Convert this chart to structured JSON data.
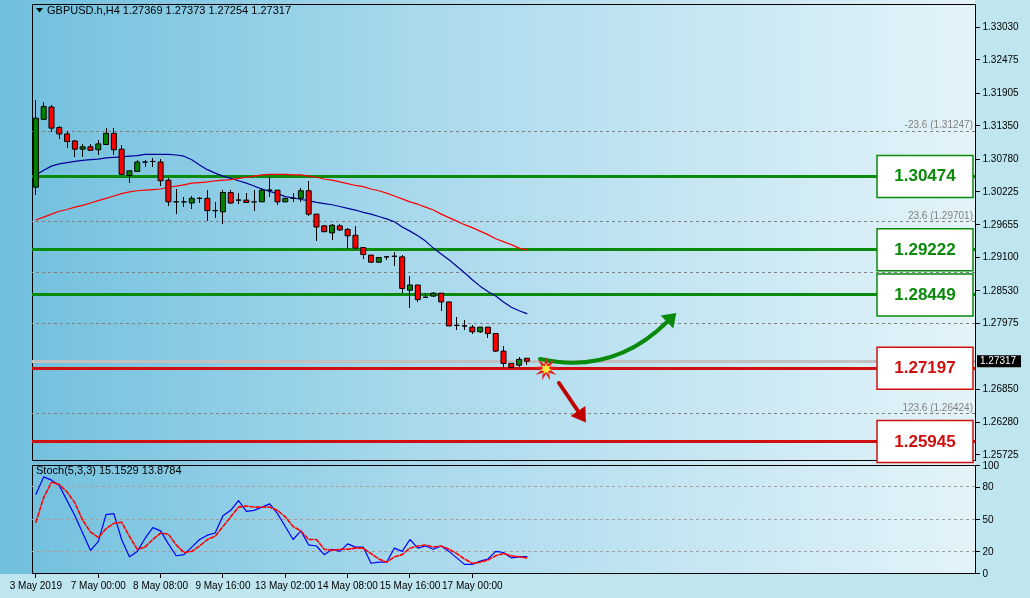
{
  "chart_data": [
    {
      "type": "candlestick",
      "title": "GBPUSD.h,H4 1.27369 1.27373 1.27254 1.27317",
      "categories": [
        null,
        null,
        null,
        null,
        null,
        null,
        null,
        null,
        null,
        null,
        null,
        null,
        null,
        null,
        null,
        null,
        null,
        null,
        null,
        null,
        null,
        null,
        null,
        null,
        null,
        null,
        null,
        null,
        null,
        null,
        null,
        null,
        null,
        null,
        null,
        null,
        null,
        null,
        null,
        null,
        null,
        null,
        null,
        null,
        null,
        null,
        null,
        null,
        null,
        null,
        null,
        null,
        null,
        null,
        null,
        null,
        null,
        null,
        null,
        null,
        null,
        null,
        null,
        null,
        null,
        null,
        null,
        null,
        null,
        null,
        null,
        null,
        null,
        null,
        null,
        null,
        null,
        null,
        null,
        null,
        null,
        null,
        null,
        null,
        null,
        null,
        null,
        null,
        null,
        null,
        null,
        null,
        null,
        null,
        null,
        null,
        null,
        null,
        null,
        null,
        null,
        null,
        null,
        null,
        null,
        null,
        null,
        null,
        null,
        null,
        null,
        null,
        null,
        null,
        null,
        null,
        null,
        null,
        null,
        null,
        null
      ],
      "ohlc": [
        [
          1.3029,
          1.3178,
          1.3016,
          1.3147
        ],
        [
          1.3145,
          1.3175,
          1.3145,
          1.3167
        ],
        [
          1.3166,
          1.317,
          1.3124,
          1.313
        ],
        [
          1.3131,
          1.3134,
          1.3111,
          1.312
        ],
        [
          1.312,
          1.3125,
          1.3096,
          1.3107
        ],
        [
          1.3108,
          1.311,
          1.308,
          1.3094
        ],
        [
          1.3094,
          1.3102,
          1.308,
          1.3098
        ],
        [
          1.3098,
          1.3102,
          1.3092,
          1.3092
        ],
        [
          1.3093,
          1.311,
          1.3084,
          1.3103
        ],
        [
          1.3102,
          1.3131,
          1.3102,
          1.3121
        ],
        [
          1.3121,
          1.3131,
          1.3084,
          1.3093
        ],
        [
          1.3094,
          1.3101,
          1.3051,
          1.3051
        ],
        [
          1.3049,
          1.3057,
          1.3037,
          1.3057
        ],
        [
          1.3056,
          1.3076,
          1.3056,
          1.3072
        ],
        [
          1.3072,
          1.3076,
          1.3064,
          1.3072
        ],
        [
          1.3073,
          1.3079,
          1.3064,
          1.3073
        ],
        [
          1.3072,
          1.3077,
          1.3031,
          1.304
        ],
        [
          1.3041,
          1.3044,
          1.2997,
          1.3004
        ],
        [
          1.3004,
          1.3026,
          1.2984,
          1.3004
        ],
        [
          1.3004,
          1.3013,
          1.2996,
          1.3004
        ],
        [
          1.3002,
          1.3014,
          1.2991,
          1.301
        ],
        [
          1.301,
          1.3013,
          1.3002,
          1.301
        ],
        [
          1.301,
          1.3024,
          1.2972,
          1.2989
        ],
        [
          1.2989,
          1.3004,
          1.2976,
          1.2989
        ],
        [
          1.2987,
          1.3024,
          1.2966,
          1.302
        ],
        [
          1.302,
          1.3024,
          1.3,
          1.3002
        ],
        [
          1.3007,
          1.3019,
          1.3,
          1.3007
        ],
        [
          1.3007,
          1.3019,
          1.3003,
          1.3003
        ],
        [
          1.3004,
          1.3024,
          1.2989,
          1.3004
        ],
        [
          1.3004,
          1.3027,
          1.3004,
          1.3024
        ],
        [
          1.3024,
          1.3047,
          1.3013,
          1.3024
        ],
        [
          1.3024,
          1.3025,
          1.2999,
          1.3004
        ],
        [
          1.3004,
          1.301,
          1.3003,
          1.301
        ],
        [
          1.301,
          1.3019,
          1.3004,
          1.301
        ],
        [
          1.301,
          1.3027,
          1.3003,
          1.3023
        ],
        [
          1.3023,
          1.304,
          1.298,
          1.2983
        ],
        [
          1.2983,
          1.2984,
          1.2937,
          1.2961
        ],
        [
          1.2963,
          1.2964,
          1.2953,
          1.2953
        ],
        [
          1.2951,
          1.2967,
          1.2939,
          1.2964
        ],
        [
          1.2963,
          1.2966,
          1.2955,
          1.2956
        ],
        [
          1.2957,
          1.296,
          1.2923,
          1.2946
        ],
        [
          1.2947,
          1.2963,
          1.2925,
          1.2925
        ],
        [
          1.2926,
          1.2926,
          1.2906,
          1.2914
        ],
        [
          1.2913,
          1.2914,
          1.2899,
          1.2901
        ],
        [
          1.2901,
          1.291,
          1.2899,
          1.2909
        ],
        [
          1.291,
          1.2912,
          1.2905,
          1.291
        ],
        [
          1.2911,
          1.2919,
          1.2894,
          1.2911
        ],
        [
          1.291,
          1.2913,
          1.2849,
          1.2856
        ],
        [
          1.2853,
          1.2877,
          1.2823,
          1.2862
        ],
        [
          1.2862,
          1.2862,
          1.2833,
          1.2837
        ],
        [
          1.2841,
          1.2848,
          1.2839,
          1.2841
        ],
        [
          1.2843,
          1.285,
          1.2842,
          1.2848
        ],
        [
          1.2848,
          1.2849,
          1.2818,
          1.2833
        ],
        [
          1.2833,
          1.2833,
          1.2792,
          1.2792
        ],
        [
          1.2793,
          1.2808,
          1.2785,
          1.2793
        ],
        [
          1.2792,
          1.2802,
          1.2785,
          1.2792
        ],
        [
          1.279,
          1.2793,
          1.2778,
          1.2782
        ],
        [
          1.2782,
          1.2791,
          1.278,
          1.279
        ],
        [
          1.279,
          1.2791,
          1.2771,
          1.2779
        ],
        [
          1.2779,
          1.2779,
          1.2748,
          1.2749
        ],
        [
          1.2749,
          1.2758,
          1.272,
          1.2728
        ],
        [
          1.2728,
          1.2729,
          1.272,
          1.2721
        ],
        [
          1.2725,
          1.2739,
          1.2722,
          1.2735
        ],
        [
          1.27369,
          1.27373,
          1.27254,
          1.27317
        ],
        null,
        null,
        null,
        null,
        null,
        null,
        null,
        null,
        null,
        null,
        null,
        null,
        null,
        null,
        null,
        null,
        null,
        null,
        null,
        null,
        null,
        null,
        null,
        null,
        null,
        null,
        null,
        null,
        null,
        null,
        null,
        null,
        null,
        null,
        null,
        null,
        null,
        null,
        null,
        null,
        null,
        null,
        null,
        null,
        null,
        null,
        null,
        null,
        null,
        null,
        null,
        null,
        null,
        null,
        null,
        null,
        null
      ],
      "colors": [
        "#008000",
        "#008000",
        "#ff0000",
        "#ff0000",
        "#ff0000",
        "#ff0000",
        "#008000",
        "#ff0000",
        "#008000",
        "#008000",
        "#ff0000",
        "#ff0000",
        "#008000",
        "#008000",
        "#000000",
        "#000000",
        "#ff0000",
        "#ff0000",
        "#000000",
        "#000000",
        "#008000",
        "#000000",
        "#ff0000",
        "#000000",
        "#008000",
        "#ff0000",
        "#000000",
        "#ff0000",
        "#000000",
        "#008000",
        "#000000",
        "#ff0000",
        "#008000",
        "#000000",
        "#008000",
        "#ff0000",
        "#ff0000",
        "#ff0000",
        "#008000",
        "#ff0000",
        "#ff0000",
        "#ff0000",
        "#ff0000",
        "#ff0000",
        "#008000",
        "#000000",
        "#000000",
        "#ff0000",
        "#008000",
        "#ff0000",
        "#000000",
        "#008000",
        "#ff0000",
        "#ff0000",
        "#000000",
        "#000000",
        "#ff0000",
        "#008000",
        "#ff0000",
        "#ff0000",
        "#ff0000",
        "#ff0000",
        "#008000",
        "#ff0000",
        null,
        null,
        null,
        null,
        null,
        null,
        null,
        null,
        null,
        null,
        null,
        null,
        null,
        null,
        null,
        null,
        null,
        null,
        null,
        null,
        null,
        null,
        null,
        null,
        null,
        null,
        null,
        null,
        null,
        null,
        null,
        null,
        null,
        null,
        null,
        null,
        null,
        null,
        null,
        null,
        null,
        null,
        null,
        null,
        null,
        null,
        null,
        null,
        null,
        null,
        null,
        null,
        null,
        null,
        null,
        null,
        null
      ],
      "series": [
        {
          "type": "line",
          "color": "#000099",
          "values": [
            1.305,
            1.3058,
            1.3065,
            1.3069,
            1.3071,
            1.3073,
            1.3075,
            1.3076,
            1.3077,
            1.3079,
            1.308,
            1.3081,
            1.3082,
            1.3083,
            1.3085,
            1.3085,
            1.3085,
            1.3085,
            1.3084,
            1.3082,
            1.3076,
            1.3067,
            1.3059,
            1.3053,
            1.3048,
            1.3044,
            1.304,
            1.3036,
            1.3031,
            1.3026,
            1.3022,
            1.3018,
            1.3013,
            1.3011,
            1.3008,
            1.3006,
            1.3003,
            1.3001,
            1.2999,
            1.2996,
            1.2993,
            1.299,
            1.2986,
            1.2983,
            1.2979,
            1.2975,
            1.297,
            1.2961,
            1.2954,
            1.2946,
            1.2937,
            1.2925,
            1.2915,
            1.2905,
            1.2894,
            1.2883,
            1.2871,
            1.286,
            1.2851,
            1.2843,
            1.2833,
            1.2824,
            1.2818,
            1.2813,
            null,
            null,
            null,
            null,
            null,
            null,
            null,
            null,
            null,
            null,
            null,
            null,
            null,
            null,
            null,
            null,
            null,
            null,
            null,
            null,
            null,
            null,
            null,
            null,
            null,
            null,
            null,
            null,
            null,
            null,
            null,
            null,
            null,
            null,
            null,
            null,
            null,
            null,
            null,
            null,
            null,
            null,
            null,
            null,
            null,
            null,
            null,
            null,
            null,
            null,
            null,
            null,
            null,
            null,
            null,
            null,
            null
          ]
        },
        {
          "type": "line",
          "color": "#ff0000",
          "values": [
            1.2973,
            1.2978,
            1.2983,
            1.2988,
            1.2991,
            1.2995,
            1.2998,
            1.3002,
            1.3006,
            1.301,
            1.3014,
            1.3018,
            1.3021,
            1.3023,
            1.3024,
            1.3025,
            1.3026,
            1.3029,
            1.3031,
            1.3033,
            1.3036,
            1.3037,
            1.3038,
            1.304,
            1.3041,
            1.3042,
            1.3044,
            1.3046,
            1.3048,
            1.305,
            1.3051,
            1.3051,
            1.3051,
            1.305,
            1.305,
            1.3048,
            1.3046,
            1.3043,
            1.3041,
            1.3038,
            1.3035,
            1.3032,
            1.303,
            1.3026,
            1.3023,
            1.3019,
            1.3014,
            1.3009,
            1.3004,
            1.3,
            1.2995,
            1.299,
            1.2983,
            1.2977,
            1.2971,
            1.2965,
            1.296,
            1.2954,
            1.2948,
            1.2941,
            1.2936,
            1.2931,
            1.2925,
            1.2922,
            null,
            null,
            null,
            null,
            null,
            null,
            null,
            null,
            null,
            null,
            null,
            null,
            null,
            null,
            null,
            null,
            null,
            null,
            null,
            null,
            null,
            null,
            null,
            null,
            null,
            null,
            null,
            null,
            null,
            null,
            null,
            null,
            null,
            null,
            null,
            null,
            null,
            null,
            null,
            null,
            null,
            null,
            null,
            null,
            null,
            null,
            null,
            null,
            null,
            null,
            null,
            null,
            null,
            null,
            null,
            null,
            null
          ]
        }
      ],
      "ylim": [
        1.2563,
        1.3342
      ],
      "yticks": [
        {
          "value": 1.3303,
          "label": "1.33030"
        },
        1.32475,
        1.31905,
        {
          "value": 1.3135,
          "label": "1.31350"
        },
        {
          "value": 1.3078,
          "label": "1.30780"
        },
        1.30225,
        1.29655,
        {
          "value": 1.291,
          "label": "1.29100"
        },
        {
          "value": 1.2853,
          "label": "1.28530"
        },
        1.27975,
        {
          "value": 1.2685,
          "label": "1.26850"
        },
        {
          "value": 1.2628,
          "label": "1.26280"
        },
        1.25725
      ],
      "ref_lines": [
        {
          "axis": "y",
          "value": 1.31247,
          "label": "-23.6 (1.31247)",
          "color": "#808080",
          "line_style": "dashed"
        },
        {
          "axis": "y",
          "value": 1.29701,
          "label": "23.6 (1.29701)",
          "color": "#808080",
          "line_style": "dashed"
        },
        {
          "axis": "y",
          "value": 1.28836,
          "color": "#808080",
          "line_style": "dashed"
        },
        {
          "axis": "y",
          "value": 1.2797,
          "color": "#808080",
          "line_style": "dashed"
        },
        {
          "axis": "y",
          "value": 1.26424,
          "label": "123.6 (1.26424)",
          "color": "#808080",
          "line_style": "dashed"
        },
        {
          "axis": "y",
          "value": 1.30474,
          "label": "1.30474",
          "color": "#0a8a0a"
        },
        {
          "axis": "y",
          "value": 1.29222,
          "label": "1.29222",
          "color": "#0a8a0a"
        },
        {
          "axis": "y",
          "value": 1.28449,
          "label": "1.28449",
          "color": "#0a8a0a"
        },
        {
          "axis": "y",
          "value": 1.27197,
          "label": "1.27197",
          "color": "#d01010"
        },
        {
          "axis": "y",
          "value": 1.25945,
          "label": "1.25945",
          "color": "#d01010"
        },
        {
          "axis": "y",
          "value": 1.27317,
          "label": "1.27317",
          "color": "#c0c0c0"
        }
      ]
    },
    {
      "type": "line",
      "title": "Stoch(5,3,3) 15.1529 13.8784",
      "categories": [
        "3 May 2019",
        null,
        null,
        null,
        null,
        null,
        null,
        null,
        "7 May 00:00",
        null,
        null,
        null,
        null,
        null,
        null,
        null,
        "8 May 08:00",
        null,
        null,
        null,
        null,
        null,
        null,
        null,
        "9 May 16:00",
        null,
        null,
        null,
        null,
        null,
        null,
        null,
        "13 May 02:00",
        null,
        null,
        null,
        null,
        null,
        null,
        null,
        "14 May 08:00",
        null,
        null,
        null,
        null,
        null,
        null,
        null,
        "15 May 16:00",
        null,
        null,
        null,
        null,
        null,
        null,
        null,
        "17 May 00:00",
        null,
        null,
        null,
        null,
        null,
        null,
        null,
        null,
        null,
        null,
        null,
        null,
        null,
        null,
        null,
        null,
        null,
        null,
        null,
        null,
        null,
        null,
        null,
        null,
        null,
        null,
        null,
        null,
        null,
        null,
        null,
        null,
        null,
        null,
        null,
        null,
        null,
        null,
        null,
        null,
        null,
        null,
        null,
        null,
        null,
        null,
        null,
        null,
        null,
        null,
        null,
        null,
        null,
        null,
        null,
        null,
        null,
        null,
        null,
        null,
        null,
        null,
        null,
        null
      ],
      "series": [
        {
          "color": "#0000ff",
          "values": [
            73,
            89,
            86,
            81,
            67,
            53,
            37,
            21,
            29,
            54,
            55,
            31,
            15,
            20,
            32,
            42,
            39,
            27,
            16,
            17,
            24,
            31,
            35,
            37,
            53,
            58,
            67,
            57,
            58,
            61,
            64,
            55,
            43,
            31,
            39,
            26,
            25,
            17,
            22,
            20,
            27,
            24,
            24,
            9,
            10,
            10,
            23,
            20,
            31,
            23,
            25,
            22,
            25,
            20,
            14,
            8,
            8,
            11,
            13,
            20,
            19,
            14,
            15,
            15.1529,
            null,
            null,
            null,
            null,
            null,
            null,
            null,
            null,
            null,
            null,
            null,
            null,
            null,
            null,
            null,
            null,
            null,
            null,
            null,
            null,
            null,
            null,
            null,
            null,
            null,
            null,
            null,
            null,
            null,
            null,
            null,
            null,
            null,
            null,
            null,
            null,
            null,
            null,
            null,
            null,
            null,
            null,
            null,
            null,
            null,
            null,
            null,
            null,
            null,
            null,
            null,
            null,
            null,
            null,
            null,
            null,
            null
          ]
        },
        {
          "color": "#ff0000",
          "line_style": "dashed",
          "values": [
            47,
            70,
            84,
            82,
            75,
            65,
            49,
            38,
            33,
            41,
            46,
            47,
            34,
            22,
            24,
            31,
            37,
            36,
            26,
            19,
            20,
            25,
            31,
            34,
            43,
            52,
            61,
            62,
            61,
            61,
            61,
            58,
            52,
            43,
            39,
            31,
            31,
            22,
            21,
            22,
            22,
            23,
            23,
            18,
            13,
            10,
            15,
            17,
            23,
            25,
            26,
            24,
            25,
            22,
            18,
            13,
            9,
            10,
            12,
            16,
            18,
            16,
            15,
            13.8784,
            null,
            null,
            null,
            null,
            null,
            null,
            null,
            null,
            null,
            null,
            null,
            null,
            null,
            null,
            null,
            null,
            null,
            null,
            null,
            null,
            null,
            null,
            null,
            null,
            null,
            null,
            null,
            null,
            null,
            null,
            null,
            null,
            null,
            null,
            null,
            null,
            null,
            null,
            null,
            null,
            null,
            null,
            null,
            null,
            null,
            null,
            null,
            null,
            null,
            null,
            null,
            null,
            null,
            null,
            null,
            null,
            null
          ]
        }
      ],
      "ylim": [
        0,
        100
      ],
      "yticks": [
        0,
        20,
        50,
        80,
        100
      ],
      "ref_lines": [
        {
          "axis": "y",
          "value": 80,
          "color": "#a0a0a0",
          "line_style": "dashed"
        },
        {
          "axis": "y",
          "value": 50,
          "color": "#a0a0a0",
          "line_style": "dashed"
        },
        {
          "axis": "y",
          "value": 20,
          "color": "#a0a0a0",
          "line_style": "dashed"
        }
      ]
    }
  ]
}
